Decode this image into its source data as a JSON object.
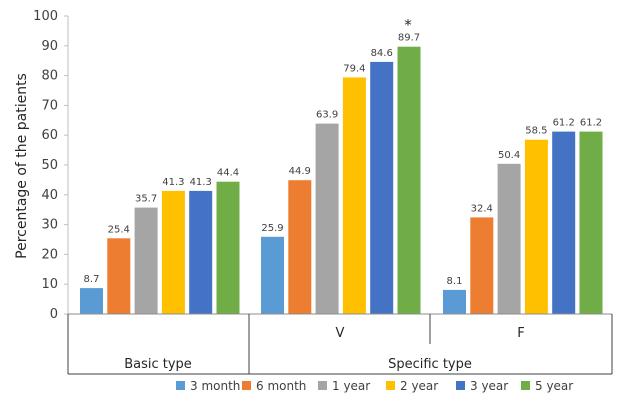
{
  "chart_data": {
    "type": "bar",
    "title": "",
    "ylabel": "Percentage of the patients",
    "ylim": [
      0,
      100
    ],
    "yticks": [
      0,
      10,
      20,
      30,
      40,
      50,
      60,
      70,
      80,
      90,
      100
    ],
    "categories": [
      "Basic type",
      "V",
      "F"
    ],
    "group_label": "Specific type",
    "series": [
      {
        "name": "3 month",
        "color": "#5B9BD5",
        "values": [
          8.7,
          25.9,
          8.1
        ]
      },
      {
        "name": "6 month",
        "color": "#ED7D31",
        "values": [
          25.4,
          44.9,
          32.4
        ]
      },
      {
        "name": "1 year",
        "color": "#A5A5A5",
        "values": [
          35.7,
          63.9,
          50.4
        ]
      },
      {
        "name": "2 year",
        "color": "#FFC000",
        "values": [
          41.3,
          79.4,
          58.5
        ]
      },
      {
        "name": "3 year",
        "color": "#4472C4",
        "values": [
          41.3,
          84.6,
          61.2
        ]
      },
      {
        "name": "5 year",
        "color": "#70AD47",
        "values": [
          44.4,
          89.7,
          61.2
        ]
      }
    ],
    "data_labels": [
      [
        "8.7",
        "25.4",
        "35.7",
        "41.3",
        "41.3",
        "44.4"
      ],
      [
        "25.9",
        "44.9",
        "63.9",
        "79.4",
        "84.6",
        "89.7"
      ],
      [
        "8.1",
        "32.4",
        "50.4",
        "58.5",
        "61.2",
        "61.2"
      ]
    ],
    "annotation": "*",
    "legend_position": "bottom",
    "grid": false
  }
}
